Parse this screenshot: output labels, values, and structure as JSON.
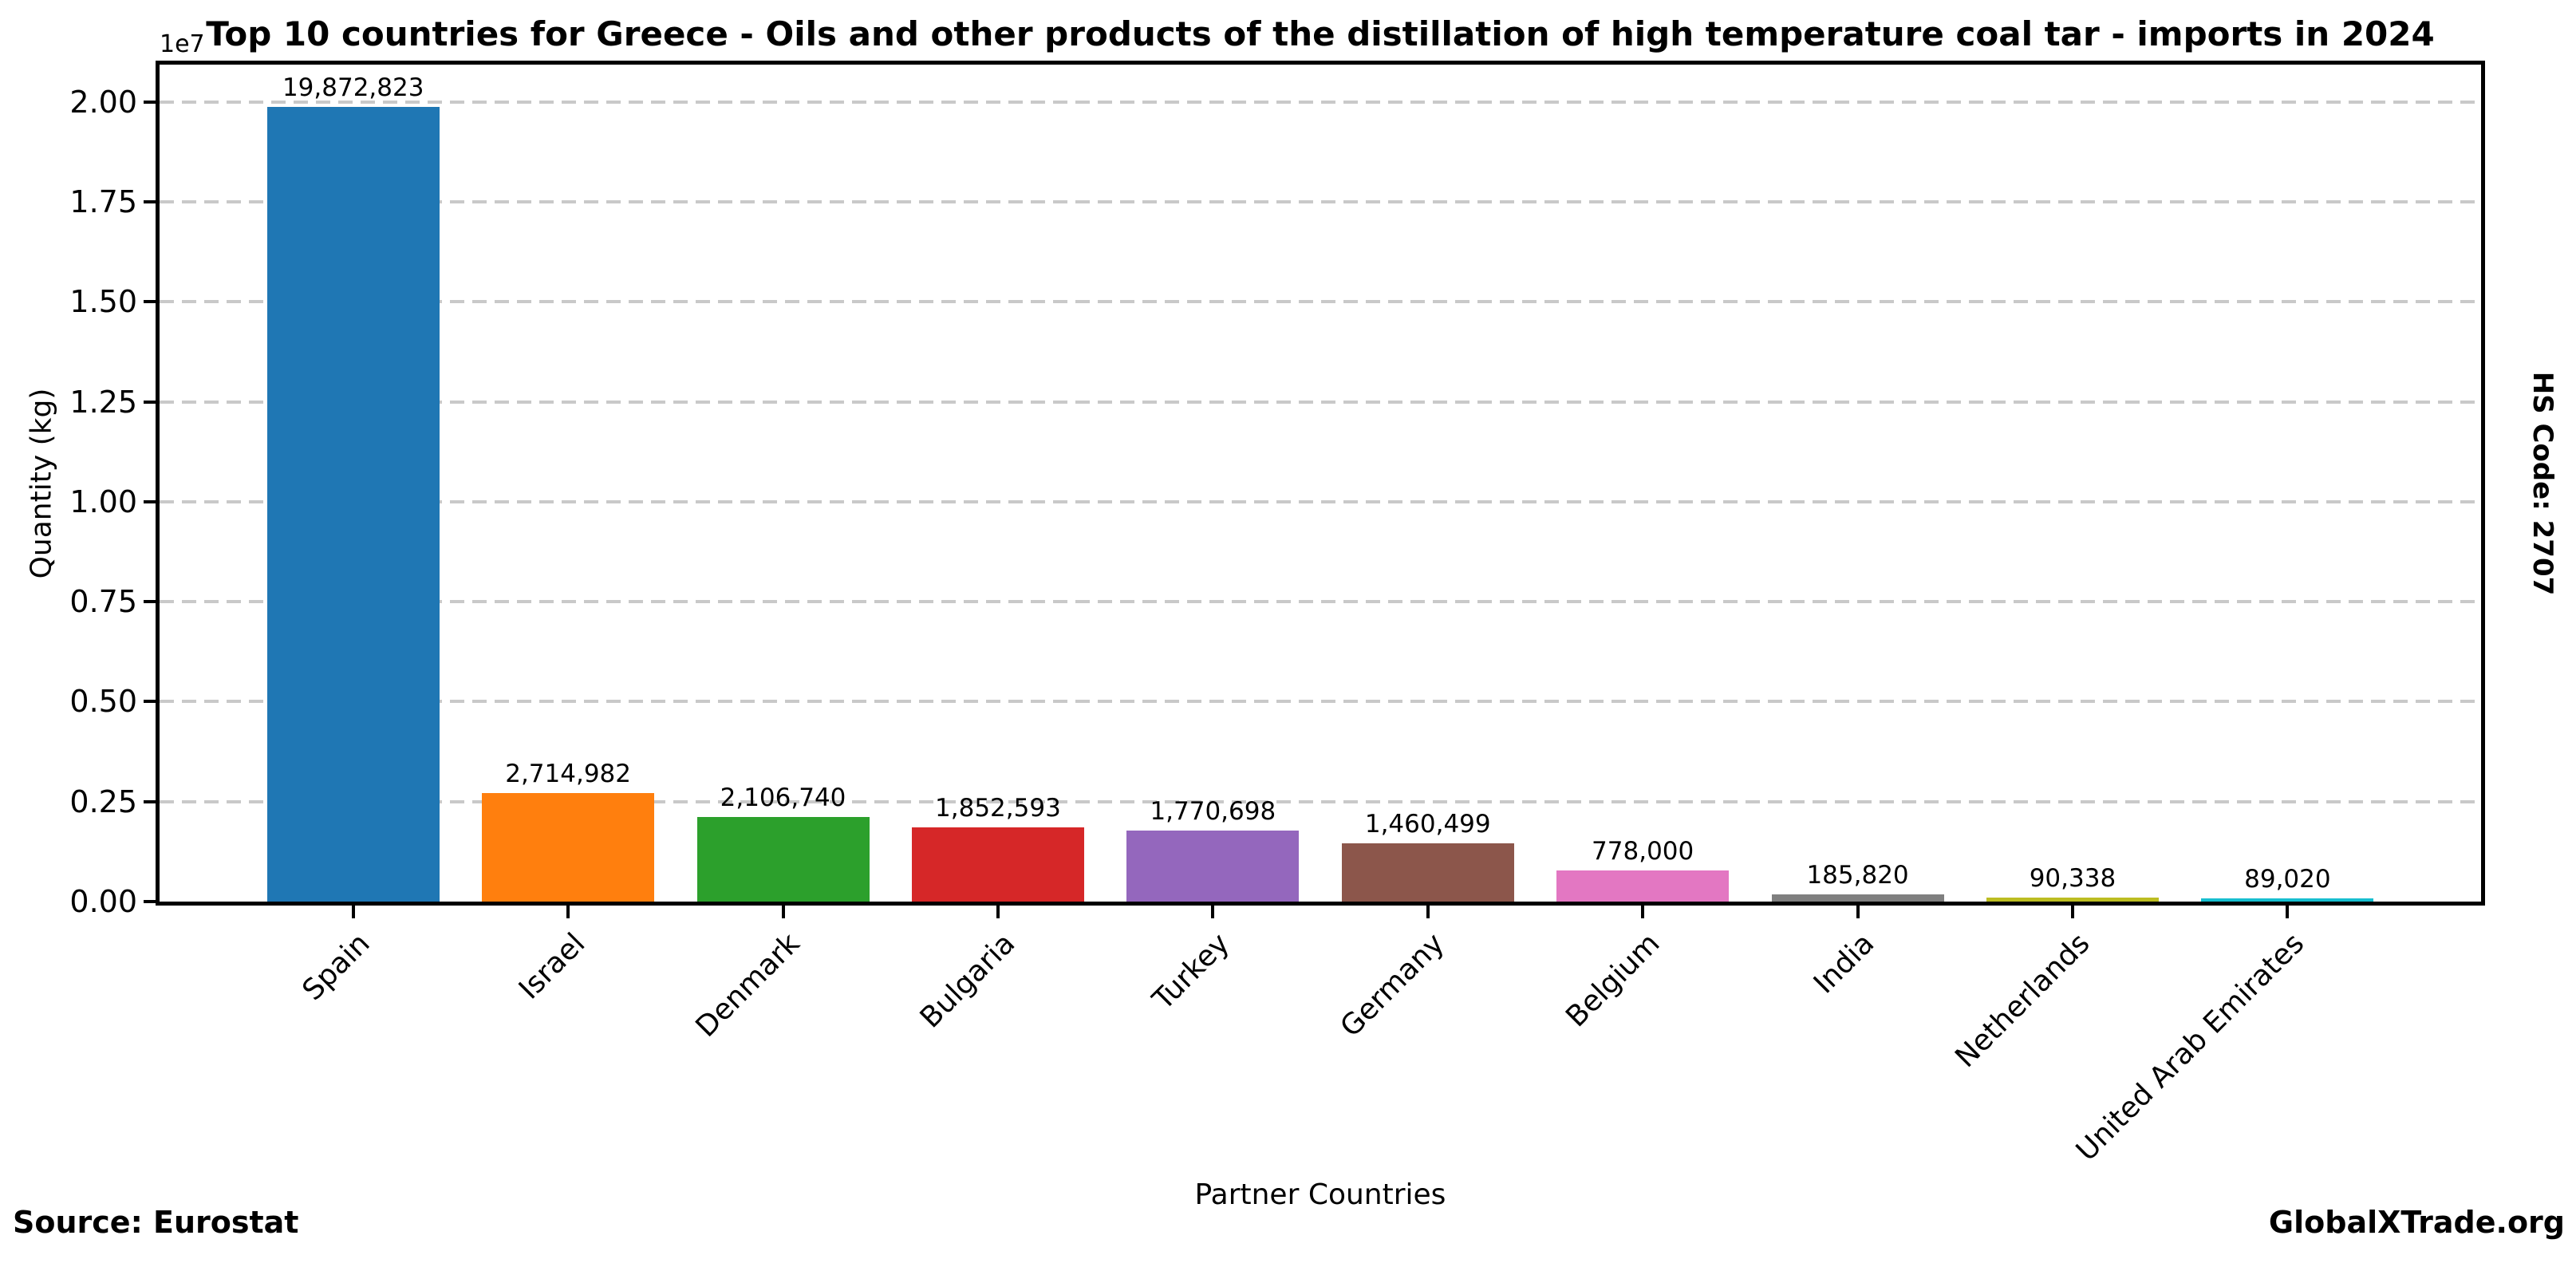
{
  "title": "Top 10 countries for Greece - Oils and other products of the distillation of high temperature coal tar - imports in 2024",
  "axes": {
    "y_label": "Quantity (kg)",
    "x_label": "Partner Countries",
    "offset_text": "1e7",
    "y_tick_labels": [
      "0.00",
      "0.25",
      "0.50",
      "0.75",
      "1.00",
      "1.25",
      "1.50",
      "1.75",
      "2.00"
    ],
    "y_tick_values": [
      0,
      2500000,
      5000000,
      7500000,
      10000000,
      12500000,
      15000000,
      17500000,
      20000000
    ]
  },
  "side_label": "HS Code: 2707",
  "footer": {
    "source": "Source: Eurostat",
    "brand": "GlobalXTrade.org"
  },
  "chart_data": {
    "type": "bar",
    "title": "Top 10 countries for Greece - Oils and other products of the distillation of high temperature coal tar - imports in 2024",
    "xlabel": "Partner Countries",
    "ylabel": "Quantity (kg)",
    "categories": [
      "Spain",
      "Israel",
      "Denmark",
      "Bulgaria",
      "Turkey",
      "Germany",
      "Belgium",
      "India",
      "Netherlands",
      "United Arab Emirates"
    ],
    "values": [
      19872823,
      2714982,
      2106740,
      1852593,
      1770698,
      1460499,
      778000,
      185820,
      90338,
      89020
    ],
    "value_labels": [
      "19,872,823",
      "2,714,982",
      "2,106,740",
      "1,852,593",
      "1,770,698",
      "1,460,499",
      "778,000",
      "185,820",
      "90,338",
      "89,020"
    ],
    "bar_colors": [
      "#1f77b4",
      "#ff7f0e",
      "#2ca02c",
      "#d62728",
      "#9467bd",
      "#8c564b",
      "#e377c2",
      "#7f7f7f",
      "#bcbd22",
      "#17becf"
    ],
    "ylim": [
      0,
      20933000
    ],
    "y_tick_step": 2500000,
    "y_offset_factor": "1e7",
    "grid": "horizontal-dashed",
    "legend": "none",
    "gridline_color": "#c9c9c9",
    "bar_width_fraction": 0.8
  }
}
